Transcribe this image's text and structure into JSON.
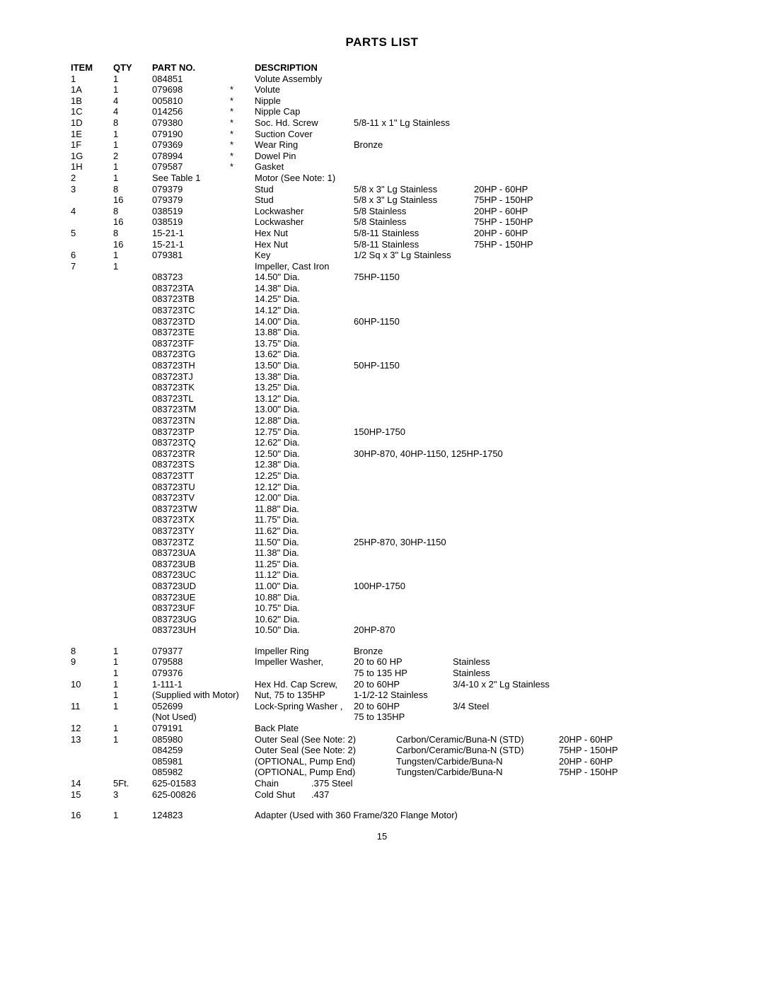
{
  "title": "PARTS LIST",
  "headers": {
    "item": "ITEM",
    "qty": "QTY",
    "part": "PART NO.",
    "desc": "DESCRIPTION"
  },
  "page_number": "15",
  "rows": [
    {
      "item": "1",
      "qty": "1",
      "part": "084851",
      "ast": "",
      "desc": "Volute Assembly",
      "spec": "",
      "spec2": "",
      "hp": ""
    },
    {
      "item": "1A",
      "qty": "1",
      "part": "079698",
      "ast": "*",
      "desc": "Volute",
      "spec": "",
      "spec2": "",
      "hp": ""
    },
    {
      "item": "1B",
      "qty": "4",
      "part": "005810",
      "ast": "*",
      "desc": "Nipple",
      "spec": "",
      "spec2": "",
      "hp": ""
    },
    {
      "item": "1C",
      "qty": "4",
      "part": "014256",
      "ast": "*",
      "desc": "Nipple Cap",
      "spec": "",
      "spec2": "",
      "hp": ""
    },
    {
      "item": "1D",
      "qty": "8",
      "part": "079380",
      "ast": "*",
      "desc": "Soc. Hd. Screw",
      "spec": "5/8-11 x 1\" Lg Stainless",
      "spec2": "",
      "hp": ""
    },
    {
      "item": "1E",
      "qty": "1",
      "part": "079190",
      "ast": "*",
      "desc": "Suction Cover",
      "spec": "",
      "spec2": "",
      "hp": ""
    },
    {
      "item": "1F",
      "qty": "1",
      "part": "079369",
      "ast": "*",
      "desc": "Wear Ring",
      "spec": "Bronze",
      "spec2": "",
      "hp": ""
    },
    {
      "item": "1G",
      "qty": "2",
      "part": "078994",
      "ast": "*",
      "desc": "Dowel Pin",
      "spec": "",
      "spec2": "",
      "hp": ""
    },
    {
      "item": "1H",
      "qty": "1",
      "part": "079587",
      "ast": "*",
      "desc": "Gasket",
      "spec": "",
      "spec2": "",
      "hp": ""
    },
    {
      "item": "2",
      "qty": "1",
      "part": "See Table 1",
      "ast": "",
      "desc": "Motor (See Note: 1)",
      "spec": "",
      "spec2": "",
      "hp": ""
    },
    {
      "item": "3",
      "qty": "8",
      "part": "079379",
      "ast": "",
      "desc": "Stud",
      "spec": "5/8 x 3\" Lg Stainless",
      "spec2": "20HP - 60HP",
      "hp": ""
    },
    {
      "item": "",
      "qty": "16",
      "part": "079379",
      "ast": "",
      "desc": "Stud",
      "spec": "5/8 x 3\" Lg Stainless",
      "spec2": "75HP - 150HP",
      "hp": ""
    },
    {
      "item": "4",
      "qty": "8",
      "part": "038519",
      "ast": "",
      "desc": "Lockwasher",
      "spec": "5/8 Stainless",
      "spec2": "20HP - 60HP",
      "hp": ""
    },
    {
      "item": "",
      "qty": "16",
      "part": "038519",
      "ast": "",
      "desc": "Lockwasher",
      "spec": "5/8 Stainless",
      "spec2": "75HP - 150HP",
      "hp": ""
    },
    {
      "item": "5",
      "qty": "8",
      "part": "15-21-1",
      "ast": "",
      "desc": "Hex Nut",
      "spec": "5/8-11 Stainless",
      "spec2": "20HP - 60HP",
      "hp": ""
    },
    {
      "item": "",
      "qty": "16",
      "part": "15-21-1",
      "ast": "",
      "desc": "Hex Nut",
      "spec": "5/8-11 Stainless",
      "spec2": "75HP - 150HP",
      "hp": ""
    },
    {
      "item": "6",
      "qty": "1",
      "part": "079381",
      "ast": "",
      "desc": "Key",
      "spec": "1/2 Sq x 3\" Lg Stainless",
      "spec2": "",
      "hp": ""
    },
    {
      "item": "7",
      "qty": "1",
      "part": "",
      "ast": "",
      "desc": "Impeller, Cast Iron",
      "spec": "",
      "spec2": "",
      "hp": ""
    },
    {
      "item": "",
      "qty": "",
      "part": "083723",
      "ast": "",
      "desc": "14.50\" Dia.",
      "spec": "75HP-1150",
      "spec2": "",
      "hp": ""
    },
    {
      "item": "",
      "qty": "",
      "part": "083723TA",
      "ast": "",
      "desc": "14.38\" Dia.",
      "spec": "",
      "spec2": "",
      "hp": ""
    },
    {
      "item": "",
      "qty": "",
      "part": "083723TB",
      "ast": "",
      "desc": "14.25\" Dia.",
      "spec": "",
      "spec2": "",
      "hp": ""
    },
    {
      "item": "",
      "qty": "",
      "part": "083723TC",
      "ast": "",
      "desc": "14.12\" Dia.",
      "spec": "",
      "spec2": "",
      "hp": ""
    },
    {
      "item": "",
      "qty": "",
      "part": "083723TD",
      "ast": "",
      "desc": "14.00\" Dia.",
      "spec": "60HP-1150",
      "spec2": "",
      "hp": ""
    },
    {
      "item": "",
      "qty": "",
      "part": "083723TE",
      "ast": "",
      "desc": "13.88\" Dia.",
      "spec": "",
      "spec2": "",
      "hp": ""
    },
    {
      "item": "",
      "qty": "",
      "part": "083723TF",
      "ast": "",
      "desc": "13.75\" Dia.",
      "spec": "",
      "spec2": "",
      "hp": ""
    },
    {
      "item": "",
      "qty": "",
      "part": "083723TG",
      "ast": "",
      "desc": "13.62\" Dia.",
      "spec": "",
      "spec2": "",
      "hp": ""
    },
    {
      "item": "",
      "qty": "",
      "part": "083723TH",
      "ast": "",
      "desc": "13.50\" Dia.",
      "spec": "50HP-1150",
      "spec2": "",
      "hp": ""
    },
    {
      "item": "",
      "qty": "",
      "part": "083723TJ",
      "ast": "",
      "desc": "13.38\" Dia.",
      "spec": "",
      "spec2": "",
      "hp": ""
    },
    {
      "item": "",
      "qty": "",
      "part": "083723TK",
      "ast": "",
      "desc": "13.25\" Dia.",
      "spec": "",
      "spec2": "",
      "hp": ""
    },
    {
      "item": "",
      "qty": "",
      "part": "083723TL",
      "ast": "",
      "desc": "13.12\" Dia.",
      "spec": "",
      "spec2": "",
      "hp": ""
    },
    {
      "item": "",
      "qty": "",
      "part": "083723TM",
      "ast": "",
      "desc": "13.00\" Dia.",
      "spec": "",
      "spec2": "",
      "hp": ""
    },
    {
      "item": "",
      "qty": "",
      "part": "083723TN",
      "ast": "",
      "desc": "12.88\" Dia.",
      "spec": "",
      "spec2": "",
      "hp": ""
    },
    {
      "item": "",
      "qty": "",
      "part": "083723TP",
      "ast": "",
      "desc": "12.75\" Dia.",
      "spec": "150HP-1750",
      "spec2": "",
      "hp": ""
    },
    {
      "item": "",
      "qty": "",
      "part": "083723TQ",
      "ast": "",
      "desc": "12.62\" Dia.",
      "spec": "",
      "spec2": "",
      "hp": ""
    },
    {
      "item": "",
      "qty": "",
      "part": "083723TR",
      "ast": "",
      "desc": "12.50\" Dia.",
      "spec": "30HP-870, 40HP-1150, 125HP-1750",
      "spec2": "",
      "hp": ""
    },
    {
      "item": "",
      "qty": "",
      "part": "083723TS",
      "ast": "",
      "desc": "12.38\" Dia.",
      "spec": "",
      "spec2": "",
      "hp": ""
    },
    {
      "item": "",
      "qty": "",
      "part": "083723TT",
      "ast": "",
      "desc": "12.25\" Dia.",
      "spec": "",
      "spec2": "",
      "hp": ""
    },
    {
      "item": "",
      "qty": "",
      "part": "083723TU",
      "ast": "",
      "desc": "12.12\" Dia.",
      "spec": "",
      "spec2": "",
      "hp": ""
    },
    {
      "item": "",
      "qty": "",
      "part": "083723TV",
      "ast": "",
      "desc": "12.00\" Dia.",
      "spec": "",
      "spec2": "",
      "hp": ""
    },
    {
      "item": "",
      "qty": "",
      "part": "083723TW",
      "ast": "",
      "desc": "11.88\" Dia.",
      "spec": "",
      "spec2": "",
      "hp": ""
    },
    {
      "item": "",
      "qty": "",
      "part": "083723TX",
      "ast": "",
      "desc": "11.75\" Dia.",
      "spec": "",
      "spec2": "",
      "hp": ""
    },
    {
      "item": "",
      "qty": "",
      "part": "083723TY",
      "ast": "",
      "desc": "11.62\" Dia.",
      "spec": "",
      "spec2": "",
      "hp": ""
    },
    {
      "item": "",
      "qty": "",
      "part": "083723TZ",
      "ast": "",
      "desc": "11.50\" Dia.",
      "spec": "25HP-870, 30HP-1150",
      "spec2": "",
      "hp": ""
    },
    {
      "item": "",
      "qty": "",
      "part": "083723UA",
      "ast": "",
      "desc": "11.38\" Dia.",
      "spec": "",
      "spec2": "",
      "hp": ""
    },
    {
      "item": "",
      "qty": "",
      "part": "083723UB",
      "ast": "",
      "desc": "11.25\" Dia.",
      "spec": "",
      "spec2": "",
      "hp": ""
    },
    {
      "item": "",
      "qty": "",
      "part": "083723UC",
      "ast": "",
      "desc": "11.12\" Dia.",
      "spec": "",
      "spec2": "",
      "hp": ""
    },
    {
      "item": "",
      "qty": "",
      "part": "083723UD",
      "ast": "",
      "desc": "11.00\" Dia.",
      "spec": "100HP-1750",
      "spec2": "",
      "hp": ""
    },
    {
      "item": "",
      "qty": "",
      "part": "083723UE",
      "ast": "",
      "desc": "10.88\" Dia.",
      "spec": "",
      "spec2": "",
      "hp": ""
    },
    {
      "item": "",
      "qty": "",
      "part": "083723UF",
      "ast": "",
      "desc": "10.75\" Dia.",
      "spec": "",
      "spec2": "",
      "hp": ""
    },
    {
      "item": "",
      "qty": "",
      "part": "083723UG",
      "ast": "",
      "desc": "10.62\" Dia.",
      "spec": "",
      "spec2": "",
      "hp": ""
    },
    {
      "item": "",
      "qty": "",
      "part": "083723UH",
      "ast": "",
      "desc": "10.50\" Dia.",
      "spec": "20HP-870",
      "spec2": "",
      "hp": ""
    }
  ],
  "rows2": [
    {
      "item": "8",
      "qty": "1",
      "part": "079377",
      "ast": "",
      "desc": "Impeller Ring",
      "spec": "Bronze",
      "spec2": "",
      "hp": ""
    },
    {
      "item": "9",
      "qty": "1",
      "part": "079588",
      "ast": "",
      "desc": "Impeller Washer,",
      "spec": "20 to 60 HP",
      "spec2": "Stainless",
      "hp": ""
    },
    {
      "item": "",
      "qty": "1",
      "part": "079376",
      "ast": "",
      "desc": "",
      "spec": "75 to 135 HP",
      "spec2": "Stainless",
      "hp": ""
    },
    {
      "item": "10",
      "qty": "1",
      "part": "1-111-1",
      "ast": "",
      "desc": "Hex Hd. Cap Screw,",
      "spec": "20 to 60HP",
      "spec2": "3/4-10 x 2\" Lg Stainless",
      "hp": ""
    },
    {
      "item": "",
      "qty": "1",
      "part": "(Supplied with Motor)",
      "ast": "",
      "desc": "Nut, 75 to 135HP",
      "spec": "1-1/2-12 Stainless",
      "spec2": "",
      "hp": ""
    },
    {
      "item": "11",
      "qty": "1",
      "part": "052699",
      "ast": "",
      "desc": "Lock-Spring Washer ,",
      "spec": "20 to 60HP",
      "spec2": "3/4 Steel",
      "hp": ""
    },
    {
      "item": "",
      "qty": "",
      "part": "(Not Used)",
      "ast": "",
      "desc": "",
      "spec": "75 to 135HP",
      "spec2": "",
      "hp": ""
    },
    {
      "item": "12",
      "qty": "1",
      "part": "079191",
      "ast": "",
      "desc": "Back Plate",
      "spec": "",
      "spec2": "",
      "hp": ""
    }
  ],
  "rows3": [
    {
      "item": "13",
      "qty": "1",
      "part": "085980",
      "desc": "Outer Seal (See Note: 2)",
      "mat": "Carbon/Ceramic/Buna-N (STD)",
      "hp": "20HP - 60HP"
    },
    {
      "item": "",
      "qty": "",
      "part": "084259",
      "desc": "Outer Seal (See Note: 2)",
      "mat": "Carbon/Ceramic/Buna-N (STD)",
      "hp": "75HP - 150HP"
    },
    {
      "item": "",
      "qty": "",
      "part": "085981",
      "desc": "(OPTIONAL, Pump End)",
      "mat": "Tungsten/Carbide/Buna-N",
      "hp": "20HP - 60HP"
    },
    {
      "item": "",
      "qty": "",
      "part": "085982",
      "desc": "(OPTIONAL, Pump End)",
      "mat": "Tungsten/Carbide/Buna-N",
      "hp": "75HP - 150HP"
    }
  ],
  "rows4": [
    {
      "item": "14",
      "qty": "5Ft.",
      "part": "625-01583",
      "desc": "Chain",
      "spec": ".375 Steel"
    },
    {
      "item": "15",
      "qty": "3",
      "part": "625-00826",
      "desc": "Cold Shut",
      "spec": ".437"
    }
  ],
  "rows5": [
    {
      "item": "16",
      "qty": "1",
      "part": "124823",
      "desc": "Adapter (Used with 360 Frame/320 Flange Motor)"
    }
  ]
}
